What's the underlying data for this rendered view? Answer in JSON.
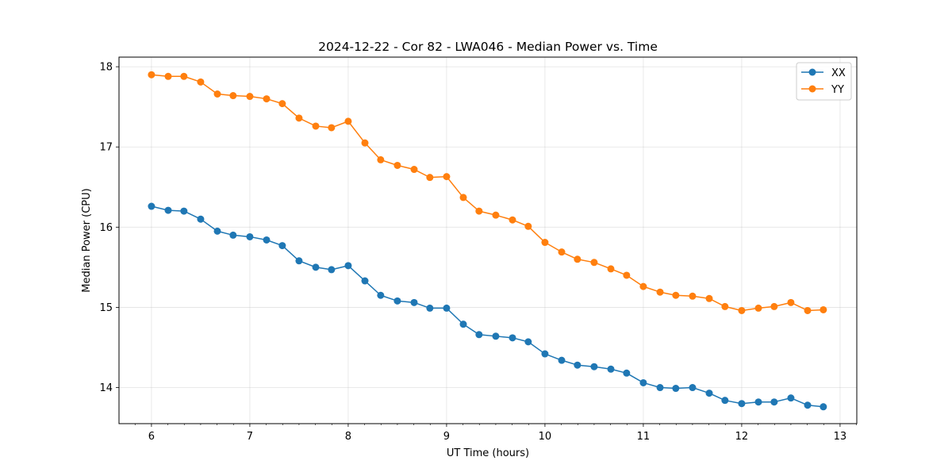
{
  "chart_data": {
    "type": "line",
    "title": "2024-12-22 - Cor 82 - LWA046 - Median Power vs. Time",
    "xlabel": "UT Time (hours)",
    "ylabel": "Median Power (CPU)",
    "xlim": [
      5.67,
      13.17
    ],
    "ylim": [
      13.55,
      18.12
    ],
    "xticks": [
      6,
      7,
      8,
      9,
      10,
      11,
      12,
      13
    ],
    "xtick_labels": [
      "6",
      "7",
      "8",
      "9",
      "10",
      "11",
      "12",
      "13"
    ],
    "yticks": [
      14,
      15,
      16,
      17,
      18
    ],
    "ytick_labels": [
      "14",
      "15",
      "16",
      "17",
      "18"
    ],
    "grid": true,
    "legend_position": "top-right",
    "x": [
      6.0,
      6.17,
      6.33,
      6.5,
      6.67,
      6.83,
      7.0,
      7.17,
      7.33,
      7.5,
      7.67,
      7.83,
      8.0,
      8.17,
      8.33,
      8.5,
      8.67,
      8.83,
      9.0,
      9.17,
      9.33,
      9.5,
      9.67,
      9.83,
      10.0,
      10.17,
      10.33,
      10.5,
      10.67,
      10.83,
      11.0,
      11.17,
      11.33,
      11.5,
      11.67,
      11.83,
      12.0,
      12.17,
      12.33,
      12.5,
      12.67,
      12.83
    ],
    "series": [
      {
        "name": "XX",
        "color": "#1f77b4",
        "values": [
          16.26,
          16.21,
          16.2,
          16.1,
          15.95,
          15.9,
          15.88,
          15.84,
          15.77,
          15.58,
          15.5,
          15.47,
          15.52,
          15.33,
          15.15,
          15.08,
          15.06,
          14.99,
          14.99,
          14.79,
          14.66,
          14.64,
          14.62,
          14.57,
          14.42,
          14.34,
          14.28,
          14.26,
          14.23,
          14.18,
          14.06,
          14.0,
          13.99,
          14.0,
          13.93,
          13.84,
          13.8,
          13.82,
          13.82,
          13.87,
          13.78,
          13.76
        ]
      },
      {
        "name": "YY",
        "color": "#ff7f0e",
        "values": [
          17.9,
          17.88,
          17.88,
          17.81,
          17.66,
          17.64,
          17.63,
          17.6,
          17.54,
          17.36,
          17.26,
          17.24,
          17.32,
          17.05,
          16.84,
          16.77,
          16.72,
          16.62,
          16.63,
          16.37,
          16.2,
          16.15,
          16.09,
          16.01,
          15.81,
          15.69,
          15.6,
          15.56,
          15.48,
          15.4,
          15.26,
          15.19,
          15.15,
          15.14,
          15.11,
          15.01,
          14.96,
          14.99,
          15.01,
          15.06,
          14.96,
          14.97
        ]
      }
    ]
  }
}
